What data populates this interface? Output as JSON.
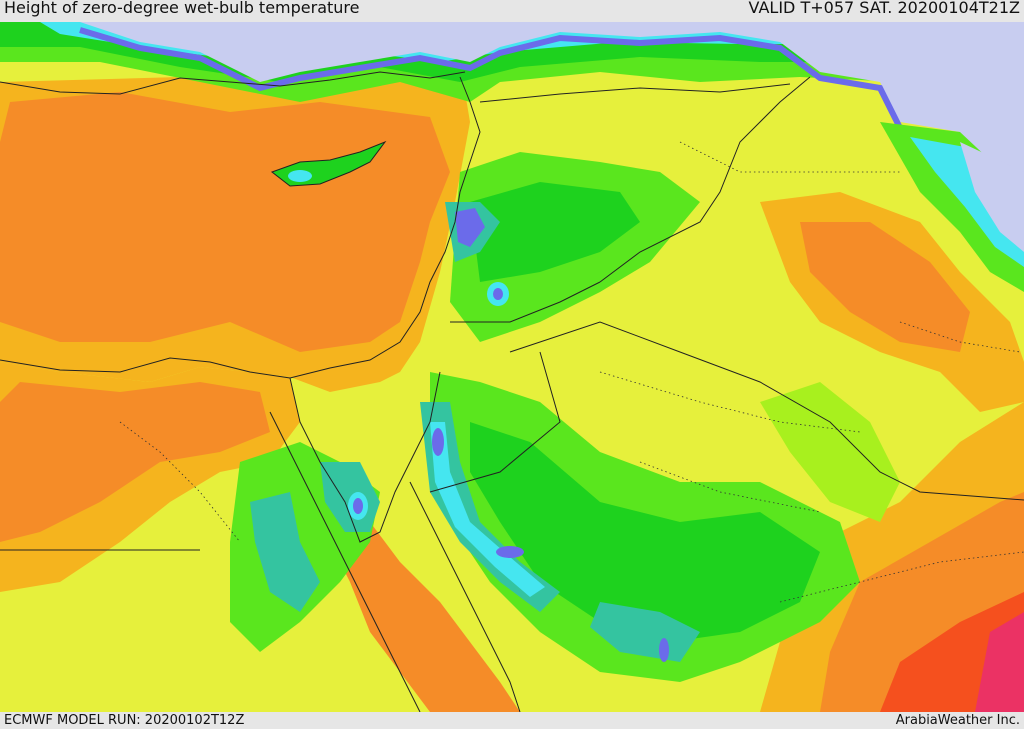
{
  "header": {
    "title": "Height of zero-degree wet-bulb temperature",
    "valid": "VALID T+057 SAT. 20200104T21Z"
  },
  "footer": {
    "model_run": "ECMWF MODEL RUN: 20200102T12Z",
    "credit": "ArabiaWeather Inc."
  },
  "colors": {
    "sea_cold": "#c8cdf0",
    "blue": "#6b6bea",
    "cyan": "#45e6f0",
    "teal": "#34c4a0",
    "green_dark": "#1ed21e",
    "green": "#5ae61e",
    "lime": "#a8f01e",
    "yellow": "#e6f03c",
    "orange_light": "#f5b41e",
    "orange": "#f58c28",
    "red": "#f5501e",
    "magenta": "#eb3264",
    "border": "#222222"
  }
}
